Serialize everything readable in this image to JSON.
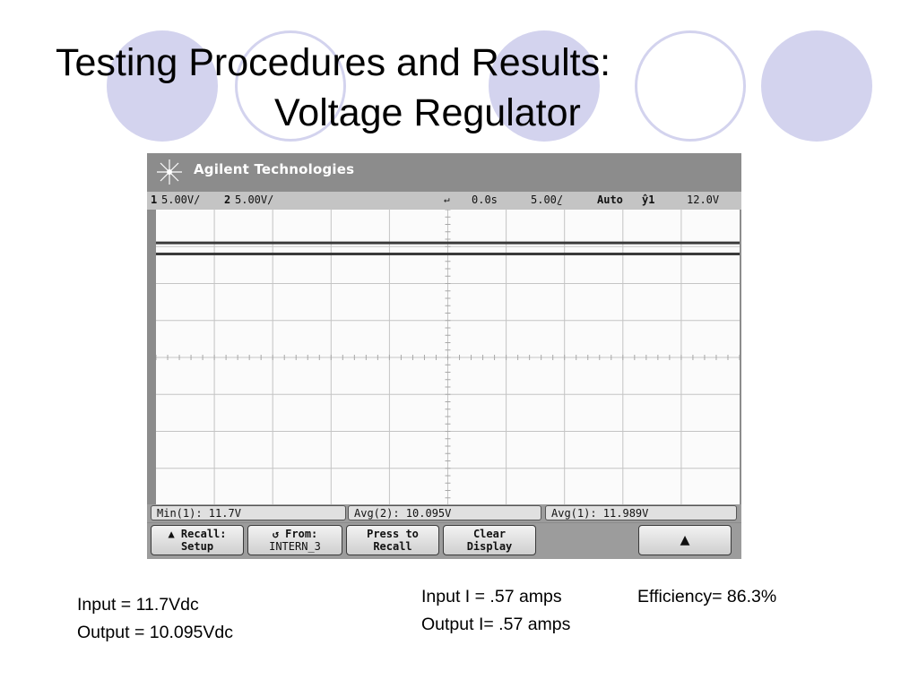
{
  "slide": {
    "title_line1": "Testing Procedures and Results:",
    "title_line2": "Voltage Regulator"
  },
  "scope": {
    "brand": "Agilent Technologies",
    "status": {
      "ch1_num": "1",
      "ch1_scale": "5.00V/",
      "ch2_num": "2",
      "ch2_scale": "5.00V/",
      "time_pos": "0.0s",
      "time_scale": "5.00̱/",
      "mode": "Auto",
      "trig_label": "ŷ1",
      "trig_level": "12.0V"
    },
    "measurements": [
      "Min(1): 11.7V",
      "Avg(2): 10.095V",
      "Avg(1): 11.989V"
    ],
    "softkeys": {
      "recall_line1": "▲ Recall:",
      "recall_line2": "Setup",
      "from_line1": "↺ From:",
      "from_line2": "INTERN_3",
      "press_line1": "Press to",
      "press_line2": "Recall",
      "clear_line1": "Clear",
      "clear_line2": "Display",
      "up_symbol": "▲"
    },
    "traces": [
      {
        "channel": 1,
        "level_div": 3.1,
        "color": "#3a3a3a"
      },
      {
        "channel": 2,
        "level_div": 2.8,
        "color": "#3a3a3a"
      }
    ],
    "grid": {
      "h_div": 10,
      "v_div": 8,
      "color": "#c4c4c4"
    }
  },
  "results": {
    "input_v": "Input = 11.7Vdc",
    "output_v": "Output = 10.095Vdc",
    "input_i": "Input I = .57 amps",
    "output_i": "Output I= .57 amps",
    "efficiency": "Efficiency= 86.3%"
  },
  "colors": {
    "circle": "#d3d3ee"
  }
}
